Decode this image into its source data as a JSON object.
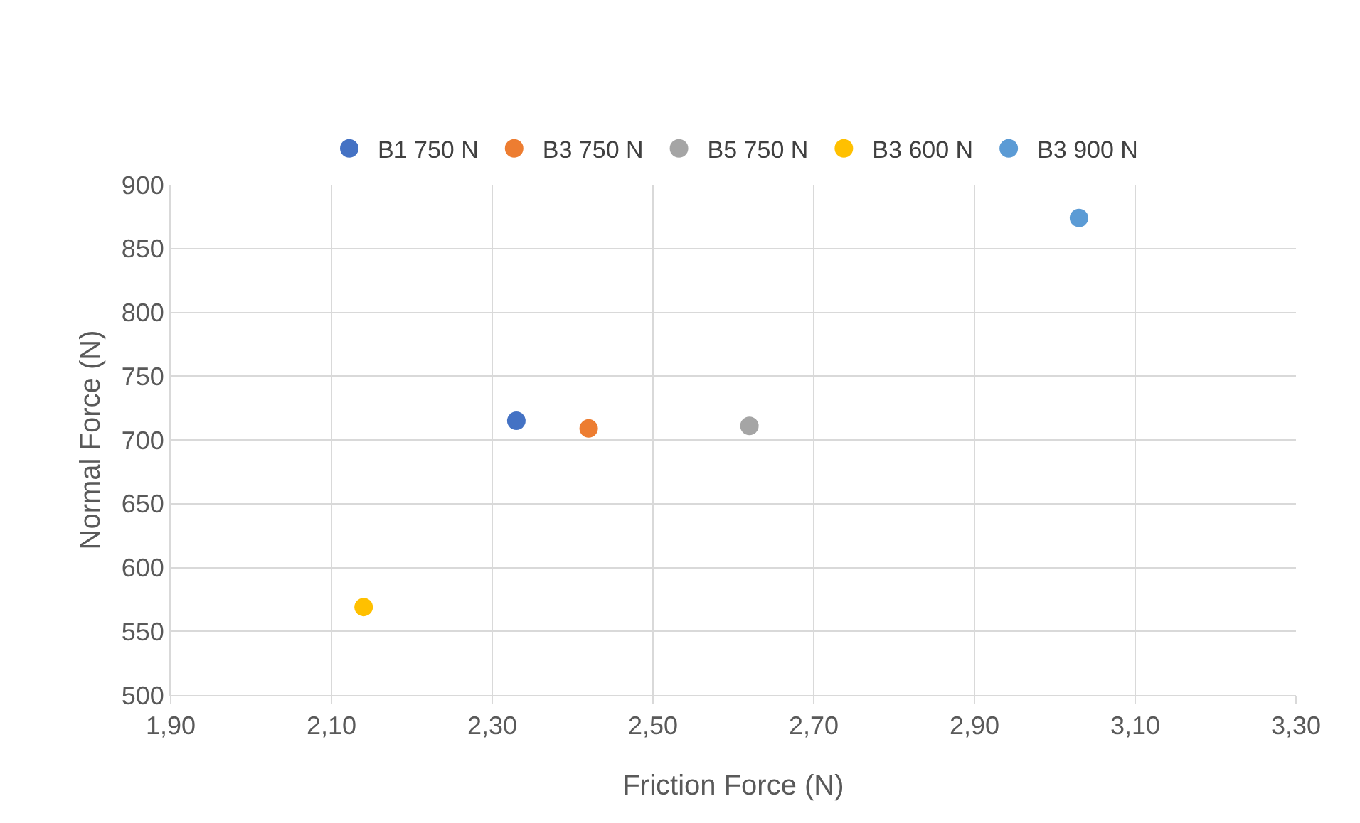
{
  "chart_data": {
    "type": "scatter",
    "xlabel": "Friction Force (N)",
    "ylabel": "Normal Force (N)",
    "series": [
      {
        "name": "B1 750 N",
        "color": "#4472c4",
        "x": [
          2.33
        ],
        "values": [
          715
        ]
      },
      {
        "name": "B3 750 N",
        "color": "#ed7d31",
        "x": [
          2.42
        ],
        "values": [
          709
        ]
      },
      {
        "name": "B5 750 N",
        "color": "#a5a5a5",
        "x": [
          2.62
        ],
        "values": [
          711
        ]
      },
      {
        "name": "B3 600 N",
        "color": "#ffc000",
        "x": [
          2.14
        ],
        "values": [
          569
        ]
      },
      {
        "name": "B3 900 N",
        "color": "#5b9bd5",
        "x": [
          3.03
        ],
        "values": [
          874
        ]
      }
    ],
    "xlim": [
      1.9,
      3.3
    ],
    "xticks": [
      {
        "value": 1.9,
        "label": "1,90"
      },
      {
        "value": 2.1,
        "label": "2,10"
      },
      {
        "value": 2.3,
        "label": "2,30"
      },
      {
        "value": 2.5,
        "label": "2,50"
      },
      {
        "value": 2.7,
        "label": "2,70"
      },
      {
        "value": 2.9,
        "label": "2,90"
      },
      {
        "value": 3.1,
        "label": "3,10"
      },
      {
        "value": 3.3,
        "label": "3,30"
      }
    ],
    "ylim": [
      500,
      900
    ],
    "yticks": [
      500,
      550,
      600,
      650,
      700,
      750,
      800,
      850,
      900
    ],
    "grid": true,
    "legend": "top",
    "marker": "circle"
  }
}
